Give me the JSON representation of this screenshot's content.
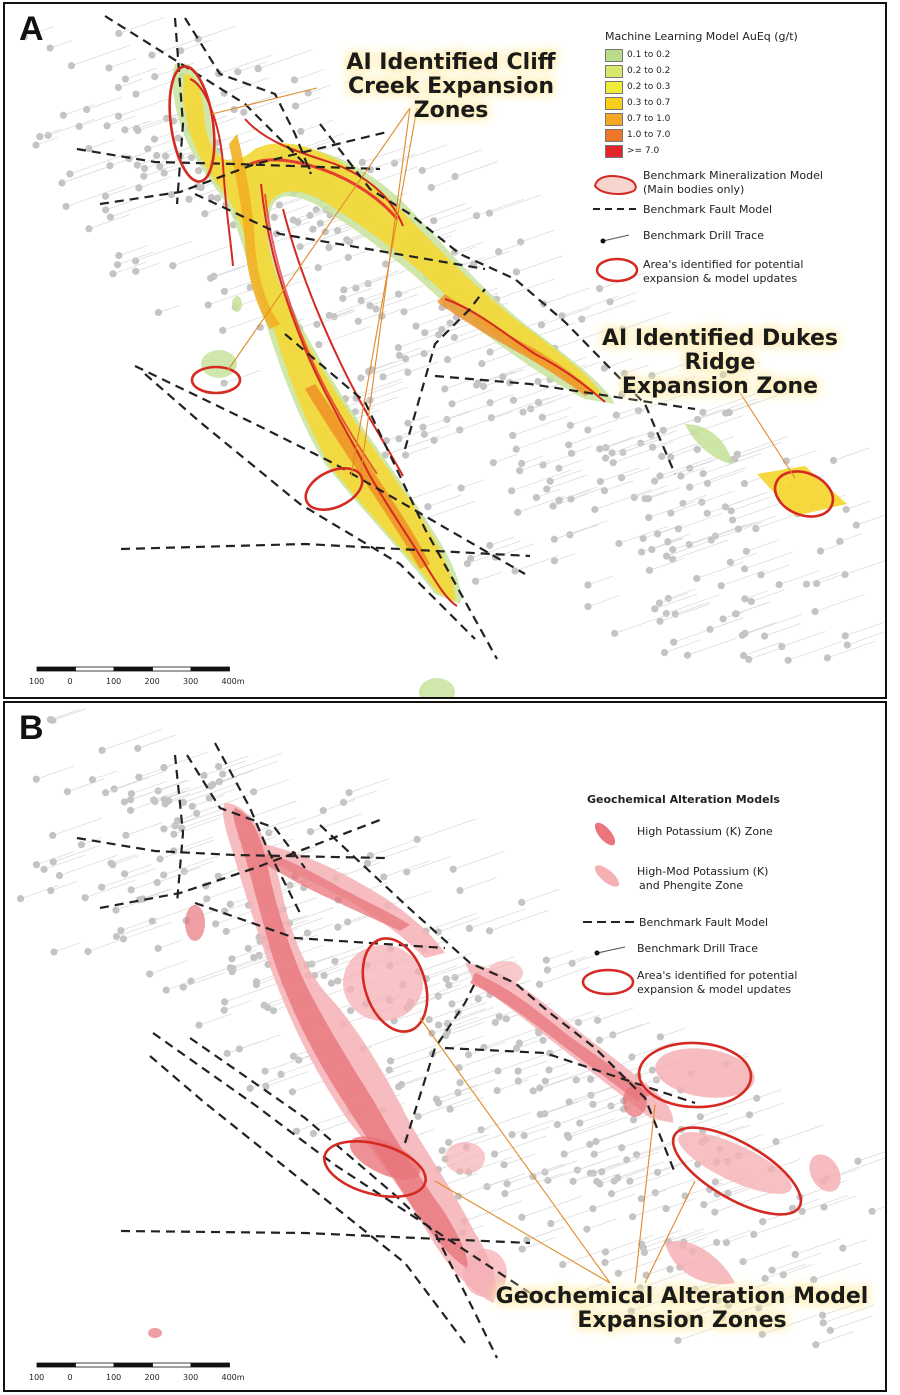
{
  "panel_a": {
    "letter": "A",
    "callout_cliff": [
      "AI Identified Cliff",
      "Creek Expansion Zones"
    ],
    "callout_dukes": [
      "AI Identified Dukes Ridge",
      "Expansion Zone"
    ],
    "legend": {
      "title": "Machine Learning Model AuEq (g/t)",
      "grades": [
        {
          "label": "0.1 to 0.2",
          "color": "#b9dc8c"
        },
        {
          "label": "0.2 to 0.2",
          "color": "#d9e86a"
        },
        {
          "label": "0.2 to 0.3",
          "color": "#f1ec3a"
        },
        {
          "label": "0.3 to 0.7",
          "color": "#f6cf1c"
        },
        {
          "label": "0.7 to 1.0",
          "color": "#f4a823"
        },
        {
          "label": "1.0 to 7.0",
          "color": "#ee7626"
        },
        {
          "label": ">= 7.0",
          "color": "#e2242b"
        }
      ],
      "mineralization_line1": "Benchmark Mineralization Model",
      "mineralization_line2": "(Main bodies only)",
      "fault": "Benchmark Fault Model",
      "drill": "Benchmark Drill Trace",
      "areas_line1": "Area's identified for potential",
      "areas_line2": "expansion & model updates"
    },
    "scale_labels": [
      "100",
      "0",
      "100",
      "200",
      "300",
      "400m"
    ]
  },
  "panel_b": {
    "letter": "B",
    "callout_geo": [
      "Geochemical Alteration Model",
      "Expansion Zones"
    ],
    "legend": {
      "title": "Geochemical Alteration Models",
      "high_k": "High Potassium (K) Zone",
      "high_mod_line1": "High-Mod Potassium (K)",
      "high_mod_line2": "and Phengite Zone",
      "fault": "Benchmark Fault Model",
      "drill": "Benchmark Drill Trace",
      "areas_line1": "Area's identified for potential",
      "areas_line2": "expansion & model updates"
    },
    "scale_labels": [
      "100",
      "0",
      "100",
      "200",
      "300",
      "400m"
    ]
  },
  "colors": {
    "expansion_ellipse": "#d42a22",
    "callout_line": "#e08a2a",
    "fault": "#222222",
    "drill_point": "#c4c4c4",
    "high_k": "#e8767c",
    "high_mod": "#f5b0b4"
  }
}
